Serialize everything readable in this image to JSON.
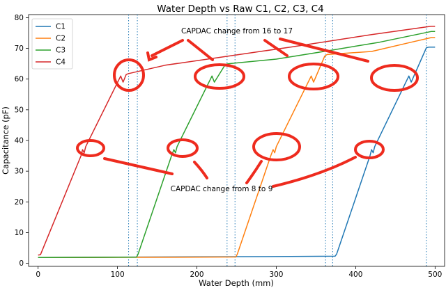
{
  "chart_data": {
    "type": "line",
    "title": "Water Depth vs Raw C1, C2, C3, C4",
    "xlabel": "Water Depth (mm)",
    "ylabel": "Capacitance (pF)",
    "xlim": [
      -12,
      512
    ],
    "ylim": [
      -1,
      81
    ],
    "xticks": [
      0,
      100,
      200,
      300,
      400,
      500
    ],
    "yticks": [
      0,
      10,
      20,
      30,
      40,
      50,
      60,
      70,
      80
    ],
    "grid": false,
    "legend_position": "top-left",
    "series": [
      {
        "name": "C1",
        "color": "#1f77b4",
        "x": [
          0,
          100,
          200,
          300,
          374,
          376,
          418,
          420,
          422,
          424,
          467,
          470,
          489,
          492,
          500
        ],
        "y": [
          1.9,
          2.0,
          2.1,
          2.2,
          2.3,
          3.0,
          35.0,
          37.0,
          36.0,
          38.0,
          61.0,
          59.0,
          70.2,
          70.4,
          70.4
        ]
      },
      {
        "name": "C2",
        "color": "#ff7f0e",
        "x": [
          0,
          100,
          200,
          249,
          251,
          293,
          296,
          298,
          300,
          344,
          347,
          361,
          364,
          420,
          470,
          495,
          500
        ],
        "y": [
          1.9,
          1.95,
          2.0,
          2.05,
          3.0,
          35.0,
          37.0,
          36.0,
          38.0,
          61.0,
          59.0,
          67.5,
          68.0,
          69.0,
          72.0,
          73.5,
          73.5
        ]
      },
      {
        "name": "C3",
        "color": "#2ca02c",
        "x": [
          0,
          60,
          124,
          126,
          168,
          171,
          173,
          175,
          219,
          222,
          236,
          240,
          300,
          360,
          430,
          495,
          500
        ],
        "y": [
          1.9,
          1.95,
          2.0,
          3.0,
          35.0,
          37.0,
          36.0,
          38.0,
          61.0,
          59.0,
          64.8,
          65.0,
          66.5,
          69.0,
          72.0,
          75.5,
          75.5
        ]
      },
      {
        "name": "C4",
        "color": "#d62728",
        "x": [
          0,
          3,
          54,
          56,
          58,
          60,
          104,
          107,
          111,
          114,
          160,
          240,
          320,
          420,
          495,
          500
        ],
        "y": [
          2.7,
          2.8,
          35.0,
          37.0,
          36.0,
          38.0,
          61.0,
          59.0,
          61.5,
          61.8,
          64.5,
          67.5,
          70.5,
          74.5,
          77.2,
          77.2
        ]
      }
    ],
    "vlines": [
      114,
      125,
      238,
      248,
      362,
      371,
      489
    ],
    "annotations": [
      "CAPDAC change from 16 to 17",
      "CAPDAC change from 8 to 9"
    ]
  }
}
